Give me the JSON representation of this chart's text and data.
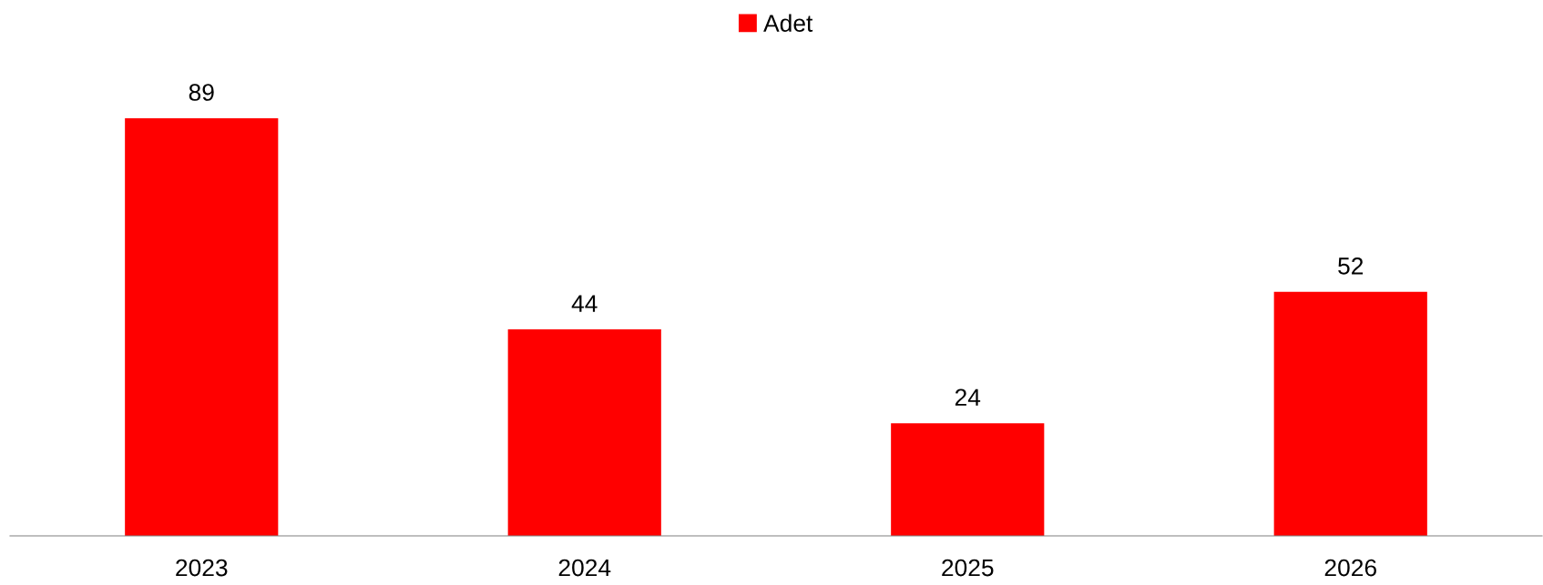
{
  "chart_data": {
    "type": "bar",
    "categories": [
      "2023",
      "2024",
      "2025",
      "2026"
    ],
    "series": [
      {
        "name": "Adet",
        "color": "#ff0000",
        "values": [
          89,
          44,
          24,
          52
        ]
      }
    ],
    "tick_labels": "x",
    "data_labels": true,
    "grid": false,
    "legend": "top"
  }
}
